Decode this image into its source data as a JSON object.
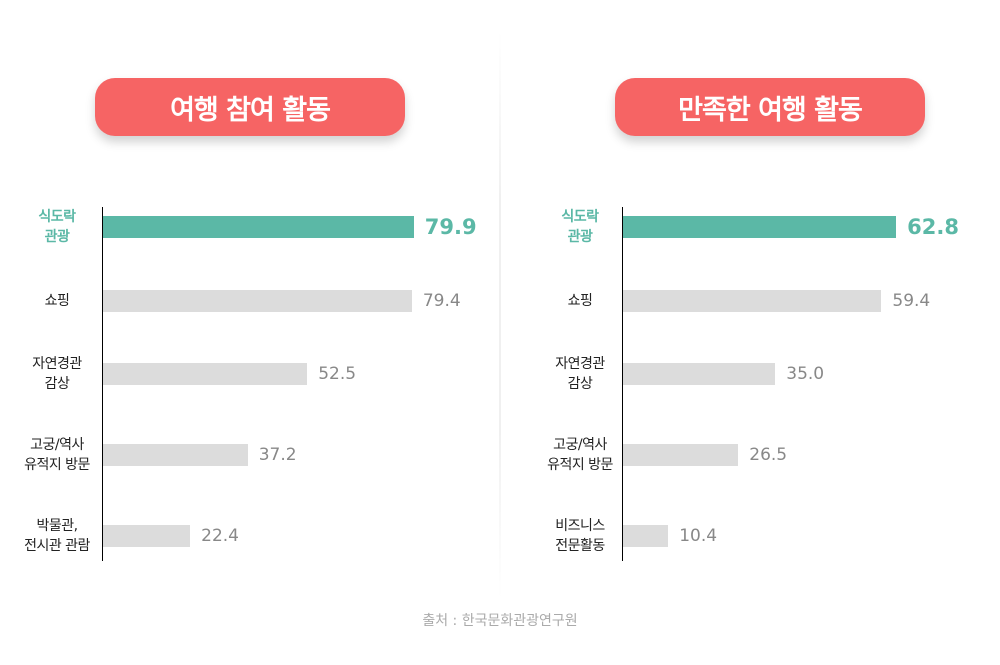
{
  "chart_data": [
    {
      "type": "bar",
      "orientation": "horizontal",
      "title": "여행 참여 활동",
      "categories": [
        "식도락\n관광",
        "쇼핑",
        "자연경관\n감상",
        "고궁/역사\n유적지 방문",
        "박물관,\n전시관 관람"
      ],
      "values": [
        79.9,
        79.4,
        52.5,
        37.2,
        22.4
      ],
      "labels": [
        "79.9",
        "79.4",
        "52.5",
        "37.2",
        "22.4"
      ],
      "highlight_index": 0,
      "xlim": [
        0,
        80
      ]
    },
    {
      "type": "bar",
      "orientation": "horizontal",
      "title": "만족한 여행 활동",
      "categories": [
        "식도락\n관광",
        "쇼핑",
        "자연경관\n감상",
        "고궁/역사\n유적지 방문",
        "비즈니스\n전문활동"
      ],
      "values": [
        62.8,
        59.4,
        35.0,
        26.5,
        10.4
      ],
      "labels": [
        "62.8",
        "59.4",
        "35.0",
        "26.5",
        "10.4"
      ],
      "highlight_index": 0,
      "xlim": [
        0,
        65
      ]
    }
  ],
  "colors": {
    "title_bg": "#f66464",
    "highlight": "#5bb8a6",
    "bar": "#dcdcdc"
  },
  "source": "출처 : 한국문화관광연구원"
}
